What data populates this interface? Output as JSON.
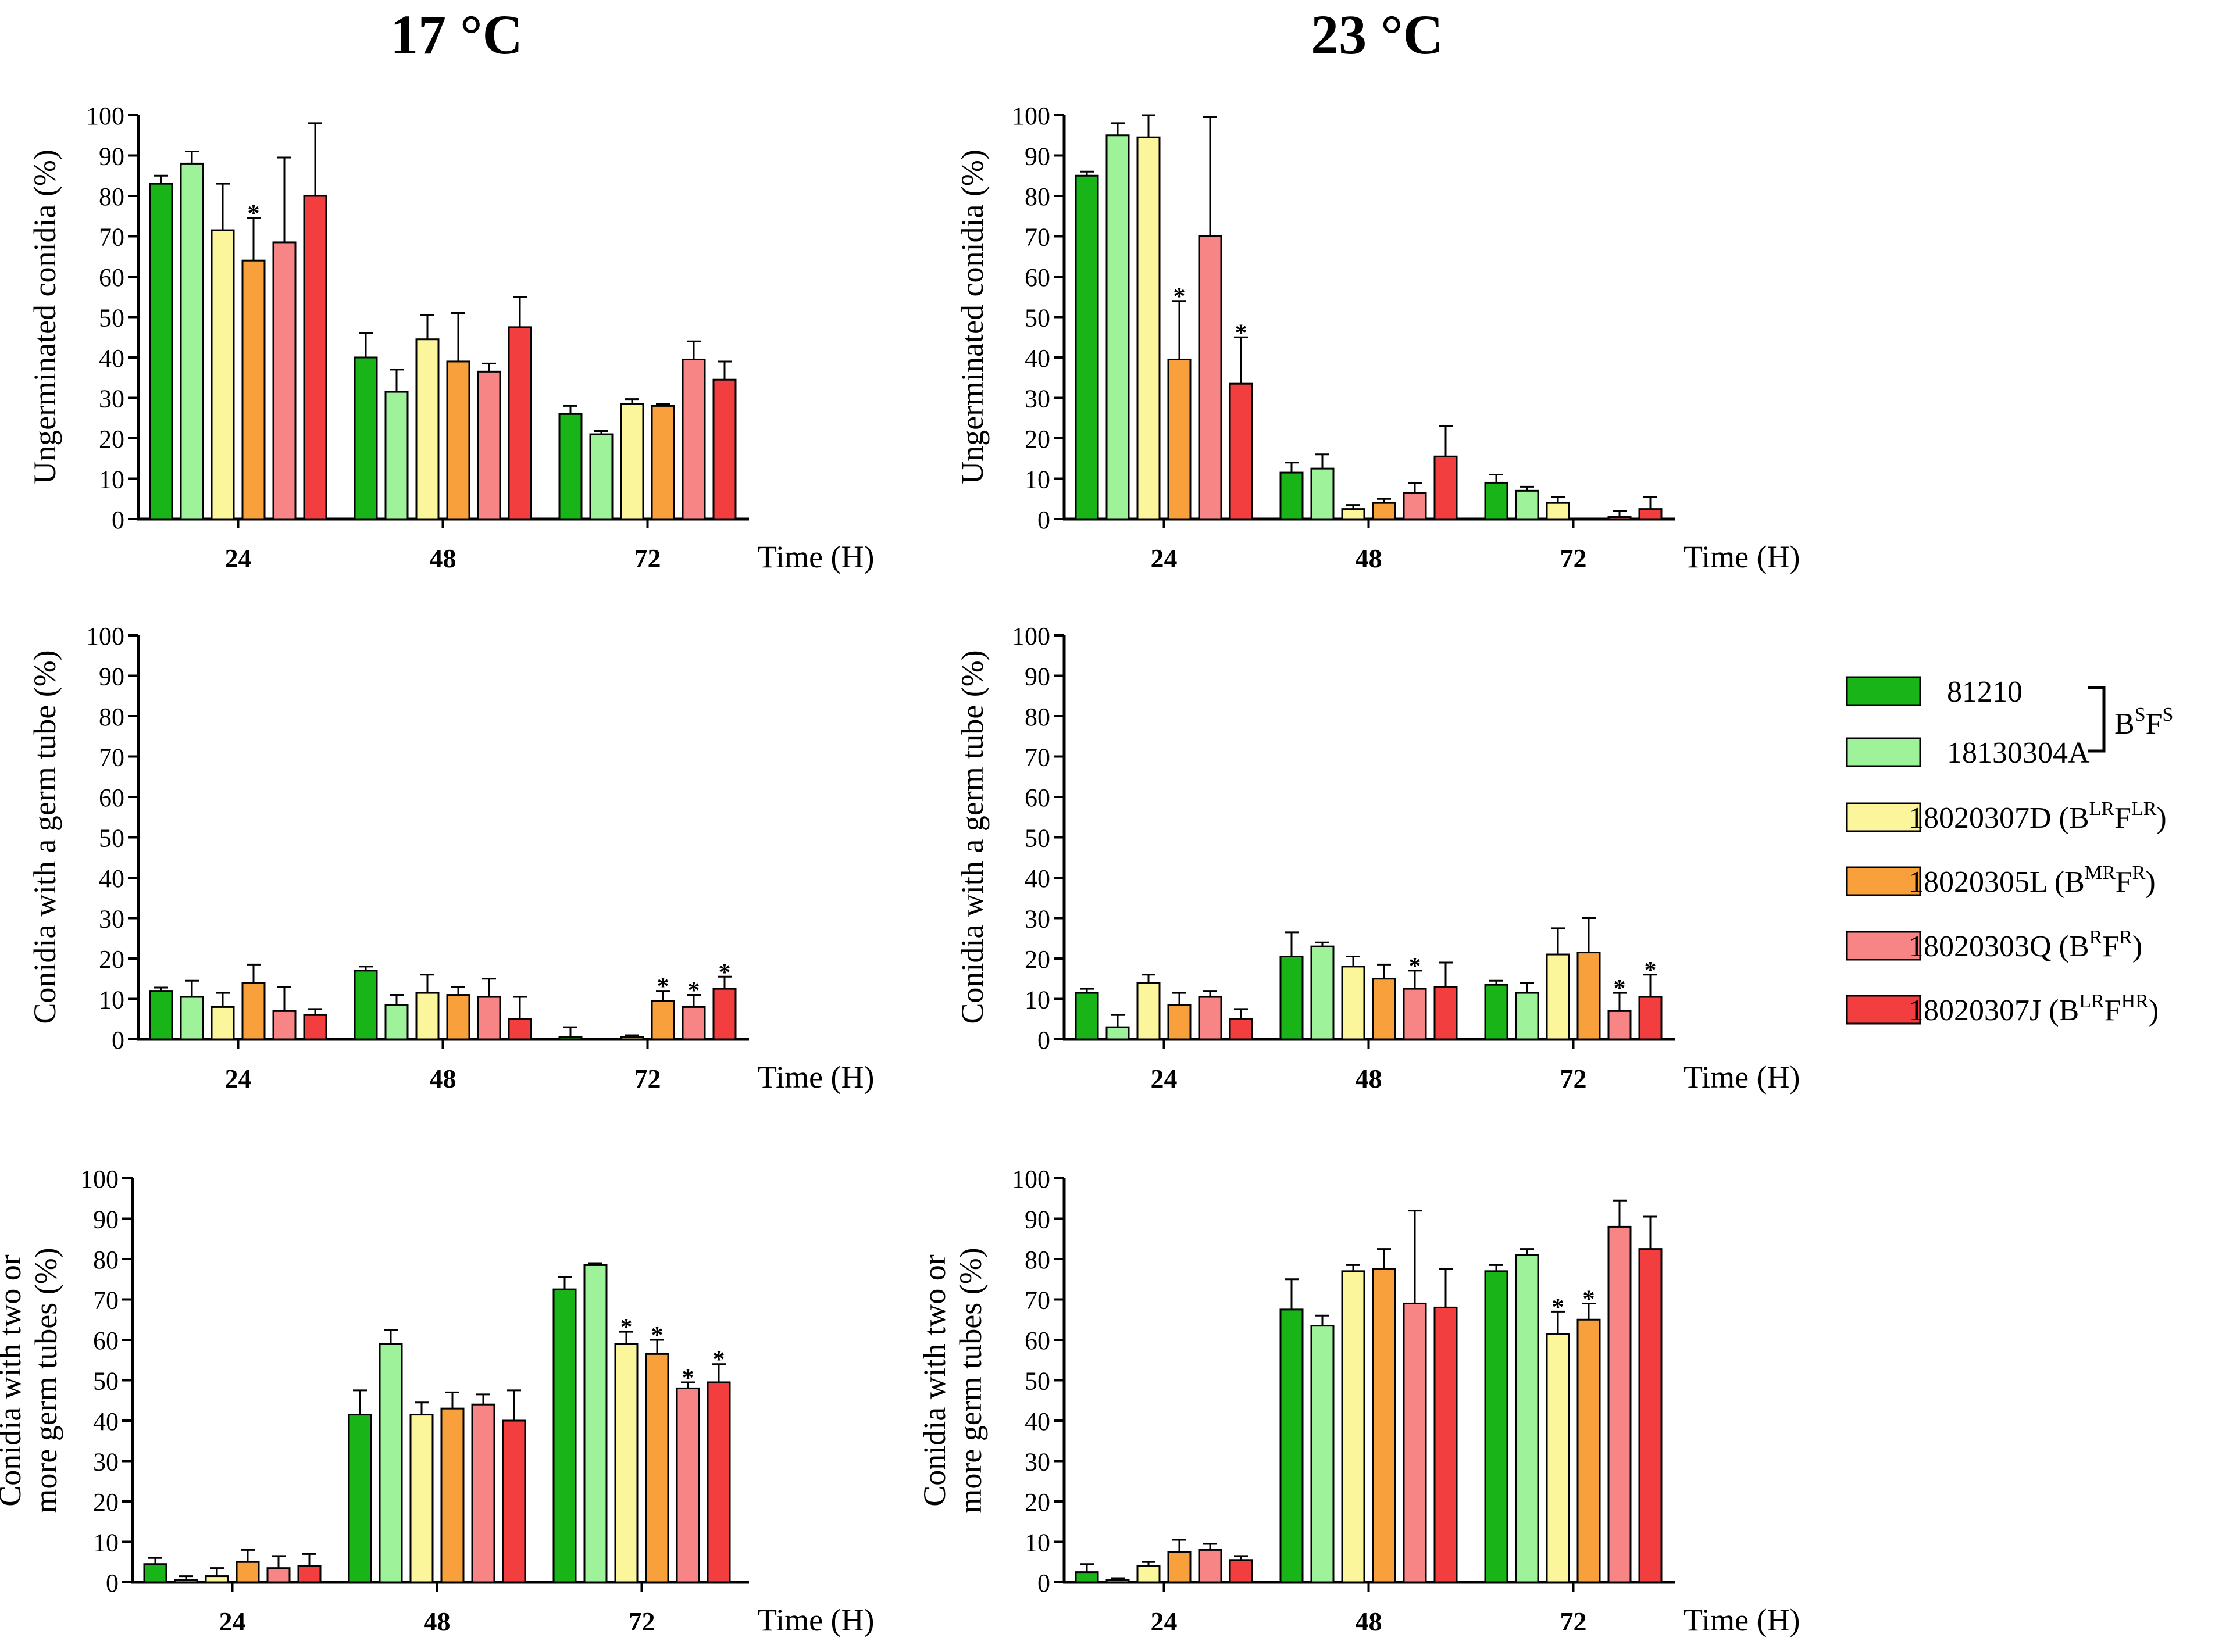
{
  "column_titles": [
    "17 °C",
    "23 °C"
  ],
  "legend": {
    "items": [
      {
        "name": "81210",
        "color": "#18B418"
      },
      {
        "name": "18130304A",
        "color": "#9EF29A"
      },
      {
        "name": "18020307D (BLRFLR)",
        "label_base": "18020307D (B",
        "sup1": "LR",
        "mid": "F",
        "sup2": "LR",
        "tail": ")",
        "color": "#FBF59B"
      },
      {
        "name": "18020305L (BMRFR)",
        "label_base": "18020305L (B",
        "sup1": "MR",
        "mid": "F",
        "sup2": "R",
        "tail": ")",
        "color": "#F7A03C"
      },
      {
        "name": "18020303Q (BRFR)",
        "label_base": "18020303Q (B",
        "sup1": "R",
        "mid": "F",
        "sup2": "R",
        "tail": ")",
        "color": "#F78585"
      },
      {
        "name": "18020307J (BLRFHR)",
        "label_base": "18020307J (B",
        "sup1": "LR",
        "mid": "F",
        "sup2": "HR",
        "tail": ")",
        "color": "#F23E3E"
      }
    ],
    "group_label": {
      "base": "B",
      "sup1": "S",
      "mid": "F",
      "sup2": "S"
    }
  },
  "chart_data": [
    {
      "type": "bar",
      "panel": "17C-ungerminated",
      "ylabel": "Ungerminated conidia (%)",
      "xlabel": "Time (H)",
      "categories": [
        "24",
        "48",
        "72"
      ],
      "ylim": [
        0,
        100
      ],
      "yticks": [
        "0",
        "10",
        "20",
        "30",
        "40",
        "50",
        "60",
        "70",
        "80",
        "90",
        "100"
      ],
      "series": [
        {
          "name": "81210",
          "values": [
            83,
            40,
            26
          ],
          "errors": [
            2,
            6,
            2
          ],
          "stars": [
            false,
            false,
            false
          ]
        },
        {
          "name": "18130304A",
          "values": [
            88,
            31.5,
            21
          ],
          "errors": [
            3,
            5.5,
            0.8
          ],
          "stars": [
            false,
            false,
            false
          ]
        },
        {
          "name": "18020307D",
          "values": [
            71.5,
            44.5,
            28.5
          ],
          "errors": [
            11.5,
            6,
            1.2
          ],
          "stars": [
            false,
            false,
            false
          ]
        },
        {
          "name": "18020305L",
          "values": [
            64,
            39,
            28
          ],
          "errors": [
            10.5,
            12,
            0.5
          ],
          "stars": [
            true,
            false,
            false
          ]
        },
        {
          "name": "18020303Q",
          "values": [
            68.5,
            36.5,
            39.5
          ],
          "errors": [
            21,
            2,
            4.5
          ],
          "stars": [
            false,
            false,
            false
          ]
        },
        {
          "name": "18020307J",
          "values": [
            80,
            47.5,
            34.5
          ],
          "errors": [
            18,
            7.5,
            4.5
          ],
          "stars": [
            false,
            false,
            false
          ]
        }
      ]
    },
    {
      "type": "bar",
      "panel": "23C-ungerminated",
      "ylabel": "Ungerminated conidia (%)",
      "xlabel": "Time (H)",
      "categories": [
        "24",
        "48",
        "72"
      ],
      "ylim": [
        0,
        100
      ],
      "yticks": [
        "0",
        "10",
        "20",
        "30",
        "40",
        "50",
        "60",
        "70",
        "80",
        "90",
        "100"
      ],
      "series": [
        {
          "name": "81210",
          "values": [
            85,
            11.5,
            9
          ],
          "errors": [
            1,
            2.5,
            2
          ],
          "stars": [
            false,
            false,
            false
          ]
        },
        {
          "name": "18130304A",
          "values": [
            95,
            12.5,
            7
          ],
          "errors": [
            3,
            3.5,
            1
          ],
          "stars": [
            false,
            false,
            false
          ]
        },
        {
          "name": "18020307D",
          "values": [
            94.5,
            2.5,
            4
          ],
          "errors": [
            5.5,
            1,
            1.5
          ],
          "stars": [
            false,
            false,
            false
          ]
        },
        {
          "name": "18020305L",
          "values": [
            39.5,
            4,
            0
          ],
          "errors": [
            14.5,
            1,
            0
          ],
          "stars": [
            true,
            false,
            false
          ]
        },
        {
          "name": "18020303Q",
          "values": [
            70,
            6.5,
            0.5
          ],
          "errors": [
            29.5,
            2.5,
            1.5
          ],
          "stars": [
            false,
            false,
            false
          ]
        },
        {
          "name": "18020307J",
          "values": [
            33.5,
            15.5,
            2.5
          ],
          "errors": [
            11.5,
            7.5,
            3
          ],
          "stars": [
            true,
            false,
            false
          ]
        }
      ]
    },
    {
      "type": "bar",
      "panel": "17C-one-germ-tube",
      "ylabel": "Conidia with a germ tube (%)",
      "xlabel": "Time (H)",
      "categories": [
        "24",
        "48",
        "72"
      ],
      "ylim": [
        0,
        100
      ],
      "yticks": [
        "0",
        "10",
        "20",
        "30",
        "40",
        "50",
        "60",
        "70",
        "80",
        "90",
        "100"
      ],
      "series": [
        {
          "name": "81210",
          "values": [
            12,
            17,
            0.5
          ],
          "errors": [
            0.8,
            1,
            2.5
          ],
          "stars": [
            false,
            false,
            false
          ]
        },
        {
          "name": "18130304A",
          "values": [
            10.5,
            8.5,
            0
          ],
          "errors": [
            4,
            2.5,
            0
          ],
          "stars": [
            false,
            false,
            false
          ]
        },
        {
          "name": "18020307D",
          "values": [
            8,
            11.5,
            0.5
          ],
          "errors": [
            3.5,
            4.5,
            0.5
          ],
          "stars": [
            false,
            false,
            false
          ]
        },
        {
          "name": "18020305L",
          "values": [
            14,
            11,
            9.5
          ],
          "errors": [
            4.5,
            2,
            2.5
          ],
          "stars": [
            false,
            false,
            true
          ]
        },
        {
          "name": "18020303Q",
          "values": [
            7,
            10.5,
            8
          ],
          "errors": [
            6,
            4.5,
            3
          ],
          "stars": [
            false,
            false,
            true
          ]
        },
        {
          "name": "18020307J",
          "values": [
            6,
            5,
            12.5
          ],
          "errors": [
            1.5,
            5.5,
            3
          ],
          "stars": [
            false,
            false,
            true
          ]
        }
      ]
    },
    {
      "type": "bar",
      "panel": "23C-one-germ-tube",
      "ylabel": "Conidia with a germ tube (%)",
      "xlabel": "Time (H)",
      "categories": [
        "24",
        "48",
        "72"
      ],
      "ylim": [
        0,
        100
      ],
      "yticks": [
        "0",
        "10",
        "20",
        "30",
        "40",
        "50",
        "60",
        "70",
        "80",
        "90",
        "100"
      ],
      "series": [
        {
          "name": "81210",
          "values": [
            11.5,
            20.5,
            13.5
          ],
          "errors": [
            1,
            6,
            1
          ],
          "stars": [
            false,
            false,
            false
          ]
        },
        {
          "name": "18130304A",
          "values": [
            3,
            23,
            11.5
          ],
          "errors": [
            3,
            1,
            2.5
          ],
          "stars": [
            false,
            false,
            false
          ]
        },
        {
          "name": "18020307D",
          "values": [
            14,
            18,
            21
          ],
          "errors": [
            2,
            2.5,
            6.5
          ],
          "stars": [
            false,
            false,
            false
          ]
        },
        {
          "name": "18020305L",
          "values": [
            8.5,
            15,
            21.5
          ],
          "errors": [
            3,
            3.5,
            8.5
          ],
          "stars": [
            false,
            false,
            false
          ]
        },
        {
          "name": "18020303Q",
          "values": [
            10.5,
            12.5,
            7
          ],
          "errors": [
            1.5,
            4.5,
            4.5
          ],
          "stars": [
            false,
            true,
            true
          ]
        },
        {
          "name": "18020307J",
          "values": [
            5,
            13,
            10.5
          ],
          "errors": [
            2.5,
            6,
            5.5
          ],
          "stars": [
            false,
            false,
            true
          ]
        }
      ]
    },
    {
      "type": "bar",
      "panel": "17C-two-or-more-germ-tubes",
      "ylabel": "Conidia with two or more germ tubes (%)",
      "ylabel_lines": [
        "Conidia with two or",
        "more germ tubes (%)"
      ],
      "xlabel": "Time (H)",
      "categories": [
        "24",
        "48",
        "72"
      ],
      "ylim": [
        0,
        100
      ],
      "yticks": [
        "0",
        "10",
        "20",
        "30",
        "40",
        "50",
        "60",
        "70",
        "80",
        "90",
        "100"
      ],
      "series": [
        {
          "name": "81210",
          "values": [
            4.5,
            41.5,
            72.5
          ],
          "errors": [
            1.5,
            6,
            3
          ],
          "stars": [
            false,
            false,
            false
          ]
        },
        {
          "name": "18130304A",
          "values": [
            0.5,
            59,
            78.5
          ],
          "errors": [
            1,
            3.5,
            0.5
          ],
          "stars": [
            false,
            false,
            false
          ]
        },
        {
          "name": "18020307D",
          "values": [
            1.5,
            41.5,
            59
          ],
          "errors": [
            2,
            3,
            3
          ],
          "stars": [
            false,
            false,
            true
          ]
        },
        {
          "name": "18020305L",
          "values": [
            5,
            43,
            56.5
          ],
          "errors": [
            3,
            4,
            3.5
          ],
          "stars": [
            false,
            false,
            true
          ]
        },
        {
          "name": "18020303Q",
          "values": [
            3.5,
            44,
            48
          ],
          "errors": [
            3,
            2.5,
            1.5
          ],
          "stars": [
            false,
            false,
            true
          ]
        },
        {
          "name": "18020307J",
          "values": [
            4,
            40,
            49.5
          ],
          "errors": [
            3,
            7.5,
            4.5
          ],
          "stars": [
            false,
            false,
            true
          ]
        }
      ]
    },
    {
      "type": "bar",
      "panel": "23C-two-or-more-germ-tubes",
      "ylabel": "Conidia with two or more germ tubes (%)",
      "ylabel_lines": [
        "Conidia with two or",
        "more germ tubes (%)"
      ],
      "xlabel": "Time (H)",
      "categories": [
        "24",
        "48",
        "72"
      ],
      "ylim": [
        0,
        100
      ],
      "yticks": [
        "0",
        "10",
        "20",
        "30",
        "40",
        "50",
        "60",
        "70",
        "80",
        "90",
        "100"
      ],
      "series": [
        {
          "name": "81210",
          "values": [
            2.5,
            67.5,
            77
          ],
          "errors": [
            2,
            7.5,
            1.5
          ],
          "stars": [
            false,
            false,
            false
          ]
        },
        {
          "name": "18130304A",
          "values": [
            0.5,
            63.5,
            81
          ],
          "errors": [
            0.5,
            2.5,
            1.5
          ],
          "stars": [
            false,
            false,
            false
          ]
        },
        {
          "name": "18020307D",
          "values": [
            4,
            77,
            61.5
          ],
          "errors": [
            1,
            1.5,
            5.5
          ],
          "stars": [
            false,
            false,
            true
          ]
        },
        {
          "name": "18020305L",
          "values": [
            7.5,
            77.5,
            65
          ],
          "errors": [
            3,
            5,
            4
          ],
          "stars": [
            false,
            false,
            true
          ]
        },
        {
          "name": "18020303Q",
          "values": [
            8,
            69,
            88
          ],
          "errors": [
            1.5,
            23,
            6.5
          ],
          "stars": [
            false,
            false,
            false
          ]
        },
        {
          "name": "18020307J",
          "values": [
            5.5,
            68,
            82.5
          ],
          "errors": [
            1,
            9.5,
            8
          ],
          "stars": [
            false,
            false,
            false
          ]
        }
      ]
    }
  ]
}
